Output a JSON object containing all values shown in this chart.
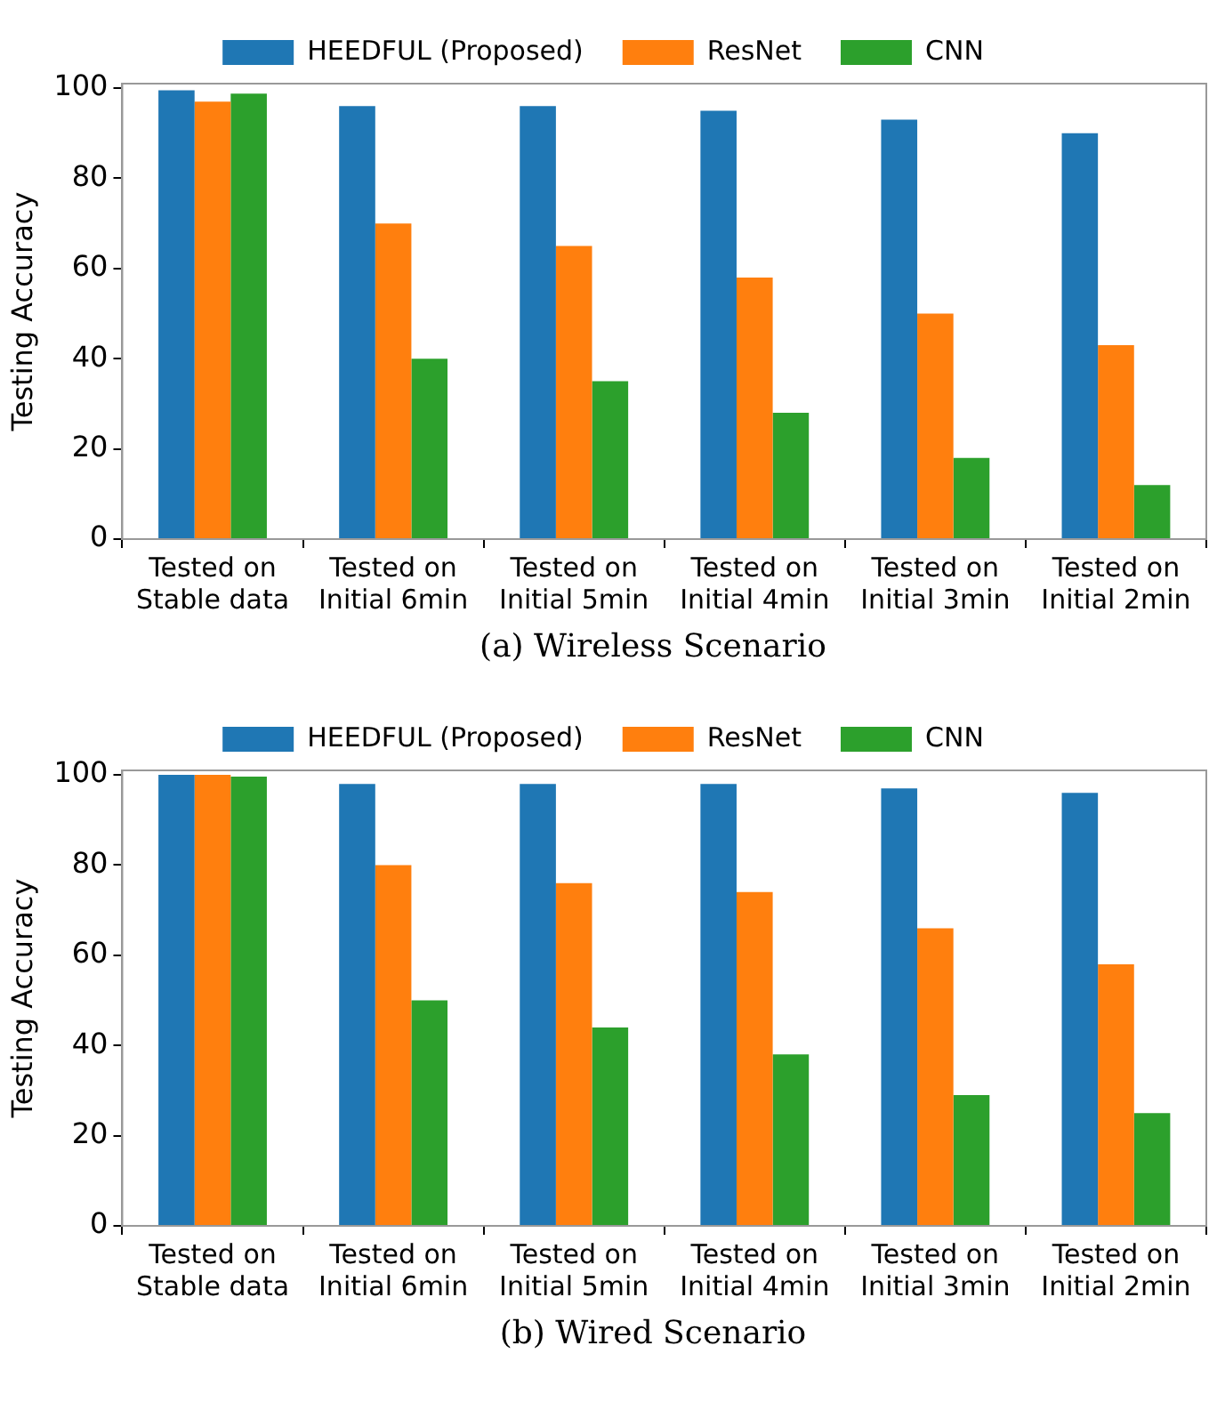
{
  "chart_data": [
    {
      "type": "bar",
      "ylabel": "Testing Accuracy",
      "annotations": [
        "(a) Wireless Scenario"
      ],
      "categories": [
        "Tested on\nStable data",
        "Tested on\nInitial 6min",
        "Tested on\nInitial 5min",
        "Tested on\nInitial 4min",
        "Tested on\nInitial 3min",
        "Tested on\nInitial 2min"
      ],
      "series": [
        {
          "name": "HEEDFUL (Proposed)",
          "color": "#1f77b4",
          "values": [
            99.5,
            96,
            96,
            95,
            93,
            90
          ]
        },
        {
          "name": "ResNet",
          "color": "#ff7f0e",
          "values": [
            97,
            70,
            65,
            58,
            50,
            43
          ]
        },
        {
          "name": "CNN",
          "color": "#2ca02c",
          "values": [
            98.8,
            40,
            35,
            28,
            18,
            12
          ]
        }
      ],
      "ylim": [
        0,
        101
      ],
      "yticks": [
        0,
        20,
        40,
        60,
        80,
        100
      ],
      "grid": false,
      "legend": "top"
    },
    {
      "type": "bar",
      "ylabel": "Testing Accuracy",
      "annotations": [
        "(b) Wired Scenario"
      ],
      "categories": [
        "Tested on\nStable data",
        "Tested on\nInitial 6min",
        "Tested on\nInitial 5min",
        "Tested on\nInitial 4min",
        "Tested on\nInitial 3min",
        "Tested on\nInitial 2min"
      ],
      "series": [
        {
          "name": "HEEDFUL (Proposed)",
          "color": "#1f77b4",
          "values": [
            100,
            98,
            98,
            98,
            97,
            96
          ]
        },
        {
          "name": "ResNet",
          "color": "#ff7f0e",
          "values": [
            100,
            80,
            76,
            74,
            66,
            58
          ]
        },
        {
          "name": "CNN",
          "color": "#2ca02c",
          "values": [
            99.6,
            50,
            44,
            38,
            29,
            25
          ]
        }
      ],
      "ylim": [
        0,
        101
      ],
      "yticks": [
        0,
        20,
        40,
        60,
        80,
        100
      ],
      "grid": false,
      "legend": "top"
    }
  ]
}
